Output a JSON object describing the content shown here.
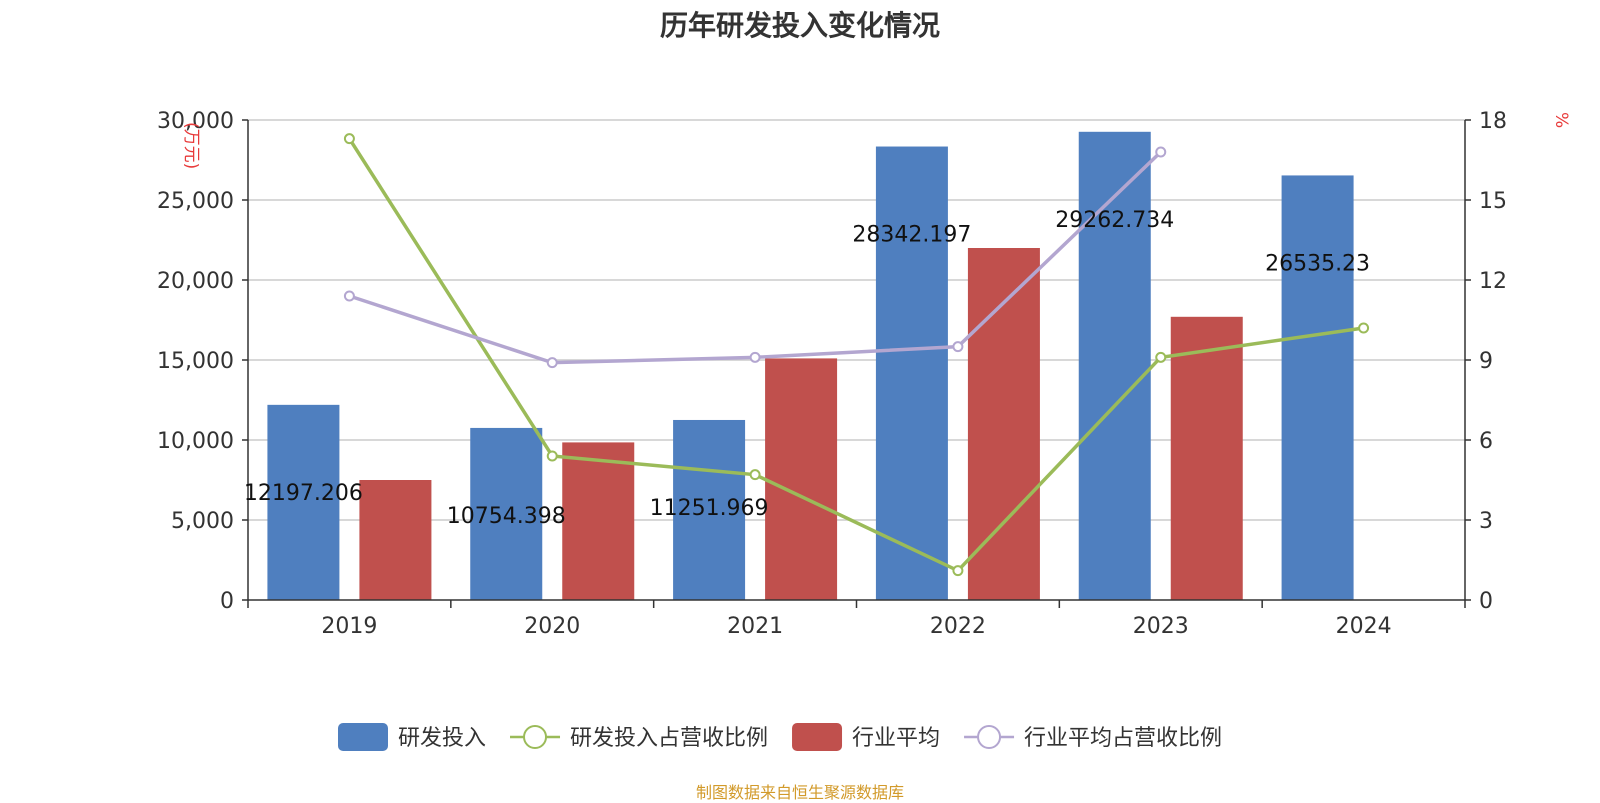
{
  "chart_data": {
    "type": "bar",
    "title": "历年研发投入变化情况",
    "categories": [
      "2019",
      "2020",
      "2021",
      "2022",
      "2023",
      "2024"
    ],
    "y_left": {
      "unit": "(万元)",
      "ylim": [
        0,
        30000
      ],
      "ticks": [
        0,
        5000,
        10000,
        15000,
        20000,
        25000,
        30000
      ],
      "tick_labels": [
        "0",
        "5,000",
        "10,000",
        "15,000",
        "20,000",
        "25,000",
        "30,000"
      ]
    },
    "y_right": {
      "unit": "%",
      "ylim": [
        0,
        18
      ],
      "ticks": [
        0,
        3,
        6,
        9,
        12,
        15,
        18
      ],
      "tick_labels": [
        "0",
        "3",
        "6",
        "9",
        "12",
        "15",
        "18"
      ]
    },
    "series": [
      {
        "name": "研发投入",
        "kind": "bar",
        "axis": "left",
        "color": "#4f7fbf",
        "values": [
          12197.206,
          10754.398,
          11251.969,
          28342.197,
          29262.734,
          26535.23
        ],
        "labels": [
          "12197.206",
          "10754.398",
          "11251.969",
          "28342.197",
          "29262.734",
          "26535.23"
        ]
      },
      {
        "name": "研发投入占营收比例",
        "kind": "line",
        "axis": "right",
        "color": "#9bbb59",
        "values": [
          17.3,
          5.4,
          4.7,
          1.1,
          9.1,
          10.2
        ]
      },
      {
        "name": "行业平均",
        "kind": "bar",
        "axis": "left",
        "color": "#c0504d",
        "values": [
          7500,
          9850,
          15100,
          22000,
          17700,
          null
        ]
      },
      {
        "name": "行业平均占营收比例",
        "kind": "line",
        "axis": "right",
        "color": "#b3a6d0",
        "values": [
          11.4,
          8.9,
          9.1,
          9.5,
          16.8,
          null
        ]
      }
    ],
    "legend_position": "bottom",
    "grid": true
  },
  "source": "制图数据来自恒生聚源数据库"
}
